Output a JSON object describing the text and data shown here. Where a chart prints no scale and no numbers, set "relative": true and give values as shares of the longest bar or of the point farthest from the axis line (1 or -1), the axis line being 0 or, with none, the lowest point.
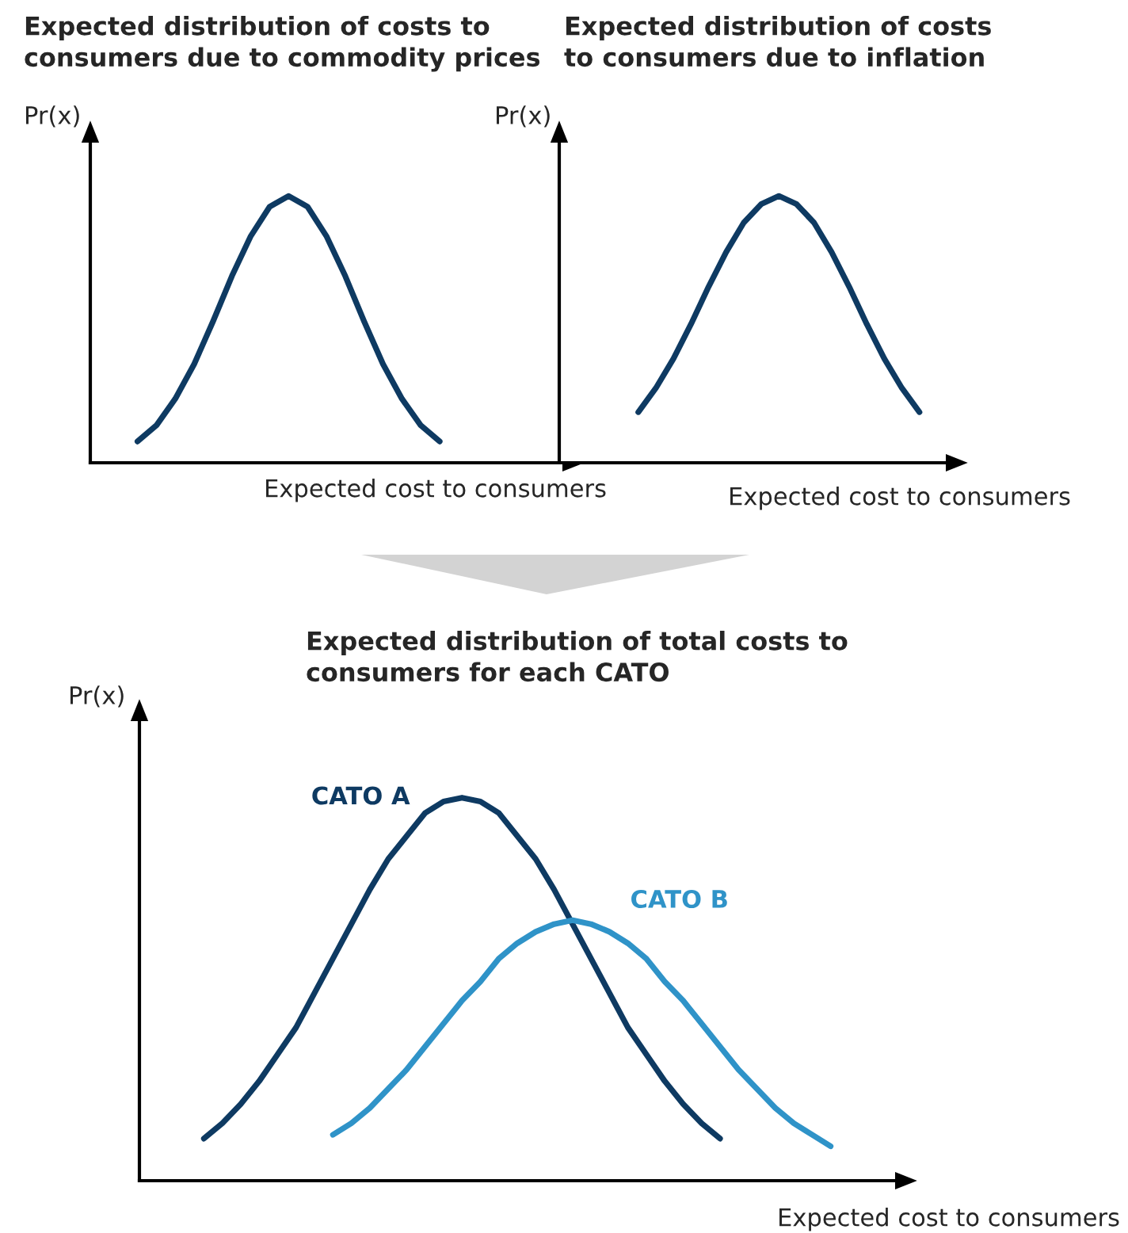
{
  "chart_data": [
    {
      "type": "line",
      "relative": true,
      "title": "Expected distribution of costs to\nconsumers due to commodity prices",
      "ylabel": "Pr(x)",
      "xlabel": "Expected cost to consumers",
      "categories": [
        null,
        null,
        null,
        null,
        null,
        null,
        null,
        null,
        null,
        null,
        null,
        null,
        null,
        null,
        null,
        null,
        null,
        null,
        null,
        null,
        null,
        null,
        null,
        null,
        null
      ],
      "series": [
        {
          "color": "#0e3a62",
          "values": [
            null,
            null,
            0.08,
            0.14,
            0.24,
            0.37,
            0.53,
            0.7,
            0.85,
            0.96,
            1,
            0.96,
            0.85,
            0.7,
            0.53,
            0.37,
            0.24,
            0.14,
            0.08,
            null,
            null,
            null,
            null,
            null,
            null
          ]
        }
      ]
    },
    {
      "type": "line",
      "relative": true,
      "title": "Expected distribution of costs\nto consumers due to inflation",
      "ylabel": "Pr(x)",
      "xlabel": "Expected cost to consumers",
      "categories": [
        null,
        null,
        null,
        null,
        null,
        null,
        null,
        null,
        null,
        null,
        null,
        null,
        null,
        null,
        null,
        null,
        null,
        null,
        null,
        null,
        null,
        null
      ],
      "series": [
        {
          "color": "#0e3a62",
          "values": [
            null,
            null,
            null,
            null,
            0.19,
            0.28,
            0.39,
            0.52,
            0.66,
            0.79,
            0.9,
            0.97,
            1,
            0.97,
            0.9,
            0.79,
            0.66,
            0.52,
            0.39,
            0.28,
            0.19,
            null
          ]
        }
      ]
    },
    {
      "type": "line",
      "relative": true,
      "title": "Expected distribution of total costs to\nconsumers for each CATO",
      "ylabel": "Pr(x)",
      "xlabel": "Expected cost to consumers",
      "categories": [
        null,
        null,
        null,
        null,
        null,
        null,
        null,
        null,
        null,
        null,
        null,
        null,
        null,
        null,
        null,
        null,
        null,
        null,
        null,
        null,
        null,
        null,
        null,
        null,
        null,
        null,
        null,
        null,
        null,
        null,
        null,
        null,
        null,
        null,
        null,
        null,
        null,
        null,
        null,
        null,
        null
      ],
      "series": [
        {
          "name": "CATO A",
          "color": "#0e3a62",
          "values": [
            null,
            null,
            null,
            0.11,
            0.15,
            0.2,
            0.26,
            0.33,
            0.4,
            0.49,
            0.58,
            0.67,
            0.76,
            0.84,
            0.9,
            0.96,
            0.99,
            1,
            0.99,
            0.96,
            0.9,
            0.84,
            0.76,
            0.67,
            0.58,
            0.49,
            0.4,
            0.33,
            0.26,
            0.2,
            0.15,
            0.11,
            null,
            null,
            null,
            null,
            null,
            null,
            null,
            null,
            null
          ]
        },
        {
          "name": "CATO B",
          "color": "#2f93c8",
          "values": [
            null,
            null,
            null,
            null,
            null,
            null,
            null,
            null,
            null,
            null,
            0.12,
            0.15,
            0.19,
            0.24,
            0.29,
            0.35,
            0.41,
            0.47,
            0.52,
            0.58,
            0.62,
            0.65,
            0.67,
            0.68,
            0.67,
            0.65,
            0.62,
            0.58,
            0.52,
            0.47,
            0.41,
            0.35,
            0.29,
            0.24,
            0.19,
            0.15,
            0.12,
            0.09,
            null,
            null,
            null
          ]
        }
      ]
    }
  ]
}
